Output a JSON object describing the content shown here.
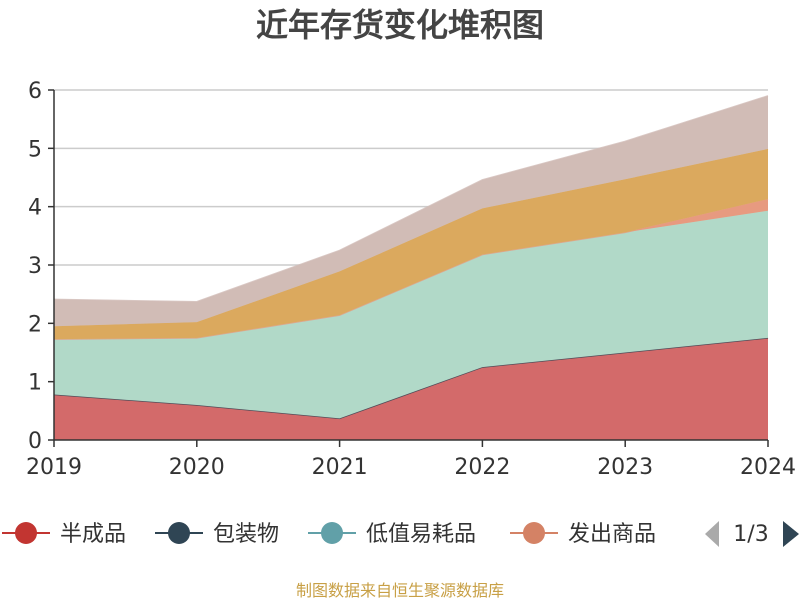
{
  "chart_data": {
    "type": "area",
    "stacked": true,
    "title": "近年存货变化堆积图",
    "xlabel": "",
    "ylabel": "",
    "categories": [
      "2019",
      "2020",
      "2021",
      "2022",
      "2023",
      "2024"
    ],
    "ylim": [
      0,
      6
    ],
    "yticks": [
      "0",
      "1",
      "2",
      "3",
      "4",
      "5",
      "6"
    ],
    "grid": true,
    "series": [
      {
        "name": "半成品",
        "color": "#d36a6a",
        "values": [
          0.78,
          0.6,
          0.37,
          1.25,
          1.5,
          1.75
        ]
      },
      {
        "name": "包装物",
        "color": "#2f4554",
        "values": [
          0.0,
          0.0,
          0.0,
          0.0,
          0.0,
          0.0
        ]
      },
      {
        "name": "低值易耗品",
        "color": "#b1d9c8",
        "values": [
          0.95,
          1.15,
          1.77,
          1.93,
          2.06,
          2.18
        ]
      },
      {
        "name": "发出商品",
        "color": "#e79a80",
        "values": [
          0.0,
          0.0,
          0.0,
          0.0,
          0.0,
          0.2
        ]
      },
      {
        "name": "",
        "color": "#dba95e",
        "values": [
          0.22,
          0.27,
          0.75,
          0.79,
          0.91,
          0.86
        ]
      },
      {
        "name": "",
        "color": "#d1bcb6",
        "values": [
          0.46,
          0.35,
          0.36,
          0.49,
          0.65,
          0.91
        ]
      }
    ],
    "legend": {
      "position": "bottom",
      "items": [
        {
          "name": "半成品",
          "color": "#c23531"
        },
        {
          "name": "包装物",
          "color": "#2f4554"
        },
        {
          "name": "低值易耗品",
          "color": "#61a0a8"
        },
        {
          "name": "发出商品",
          "color": "#d48265"
        }
      ],
      "page": "1/3"
    }
  },
  "footer": {
    "source": "制图数据来自恒生聚源数据库"
  },
  "colors": {
    "axis": "#333333",
    "grid": "#cccccc",
    "pager_disabled": "#aaaaaa",
    "pager_active": "#2f4554"
  }
}
